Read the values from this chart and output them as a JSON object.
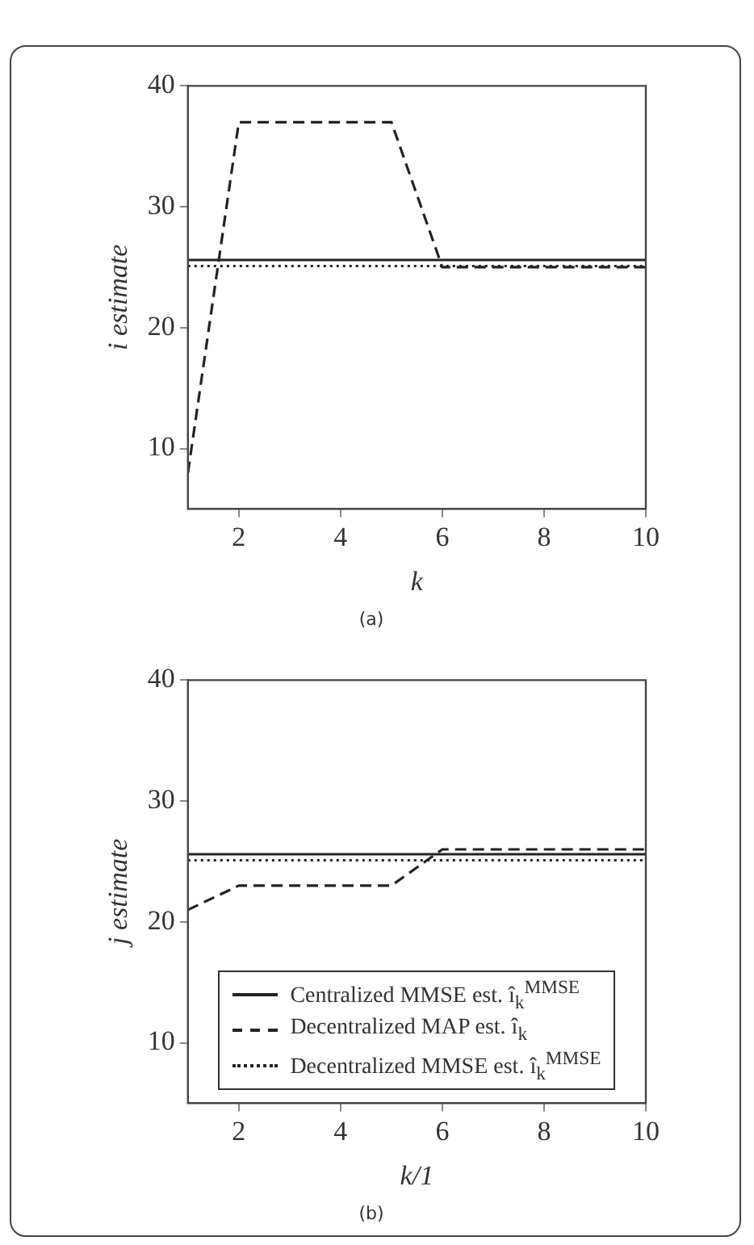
{
  "chart_data": [
    {
      "type": "line",
      "xlabel": "k",
      "ylabel": "i estimate",
      "xlim": [
        1,
        10
      ],
      "xticks": [
        2,
        4,
        6,
        8,
        10
      ],
      "ylim": [
        5,
        40
      ],
      "yticks": [
        10,
        20,
        30,
        40
      ],
      "x": [
        1,
        2,
        3,
        4,
        5,
        6,
        7,
        8,
        9,
        10
      ],
      "grid": false,
      "legend": false,
      "marker": "none",
      "annotations": [
        "(a)"
      ],
      "series": [
        {
          "color": "#222222",
          "line_style": "solid",
          "values": [
            25.6,
            25.6,
            25.6,
            25.6,
            25.6,
            25.6,
            25.6,
            25.6,
            25.6,
            25.6
          ]
        },
        {
          "color": "#222222",
          "line_style": "dashed",
          "values": [
            8,
            37,
            37,
            37,
            37,
            25,
            25,
            25,
            25,
            25
          ]
        },
        {
          "color": "#222222",
          "line_style": "dotted",
          "values": [
            25.1,
            25.1,
            25.1,
            25.1,
            25.1,
            25.1,
            25.1,
            25.1,
            25.1,
            25.1
          ]
        }
      ]
    },
    {
      "type": "line",
      "xlabel": "k/1",
      "ylabel": "j estimate",
      "xlim": [
        1,
        10
      ],
      "xticks": [
        2,
        4,
        6,
        8,
        10
      ],
      "ylim": [
        5,
        40
      ],
      "yticks": [
        10,
        20,
        30,
        40
      ],
      "x": [
        1,
        2,
        3,
        4,
        5,
        6,
        7,
        8,
        9,
        10
      ],
      "grid": false,
      "legend": "bottom",
      "marker": "none",
      "annotations": [
        "(b)"
      ],
      "series": [
        {
          "name": "Centralized MMSE est. î$_{k}$$^{MMSE}$",
          "color": "#222222",
          "line_style": "solid",
          "values": [
            25.6,
            25.6,
            25.6,
            25.6,
            25.6,
            25.6,
            25.6,
            25.6,
            25.6,
            25.6
          ]
        },
        {
          "name": "Decentralized MAP est. î$_{k}$",
          "color": "#222222",
          "line_style": "dashed",
          "values": [
            21,
            23,
            23,
            23,
            23,
            26,
            26,
            26,
            26,
            26
          ]
        },
        {
          "name": "Decentralized MMSE est. î$_{k}$$^{MMSE}$",
          "color": "#222222",
          "line_style": "dotted",
          "values": [
            25.1,
            25.1,
            25.1,
            25.1,
            25.1,
            25.1,
            25.1,
            25.1,
            25.1,
            25.1
          ]
        }
      ]
    }
  ]
}
